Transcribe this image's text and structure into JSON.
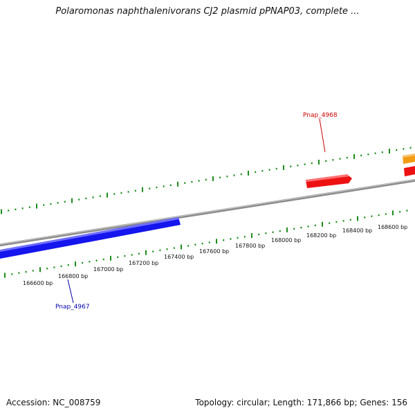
{
  "title": "Polaromonas naphthalenivorans CJ2 plasmid pPNAP03, complete ...",
  "footer": {
    "accession": "Accession: NC_008759",
    "summary": "Topology: circular; Length: 171,866 bp; Genes: 156"
  },
  "colors": {
    "backbone": "#8c8c8c",
    "tick": "#1a8c1a",
    "forward_gene": "#ee1111",
    "reverse_gene": "#1515ee",
    "other_gene": "#f39c12",
    "forward_label": "#cc0000",
    "reverse_label": "#0000aa"
  },
  "genes": [
    {
      "name": "Pnap_4968",
      "strand": "forward"
    },
    {
      "name": "Pnap_4967",
      "strand": "reverse"
    }
  ],
  "bp_labels": [
    "166600 bp",
    "166800 bp",
    "167000 bp",
    "167200 bp",
    "167400 bp",
    "167600 bp",
    "167800 bp",
    "168000 bp",
    "168200 bp",
    "168400 bp",
    "168600 bp"
  ]
}
